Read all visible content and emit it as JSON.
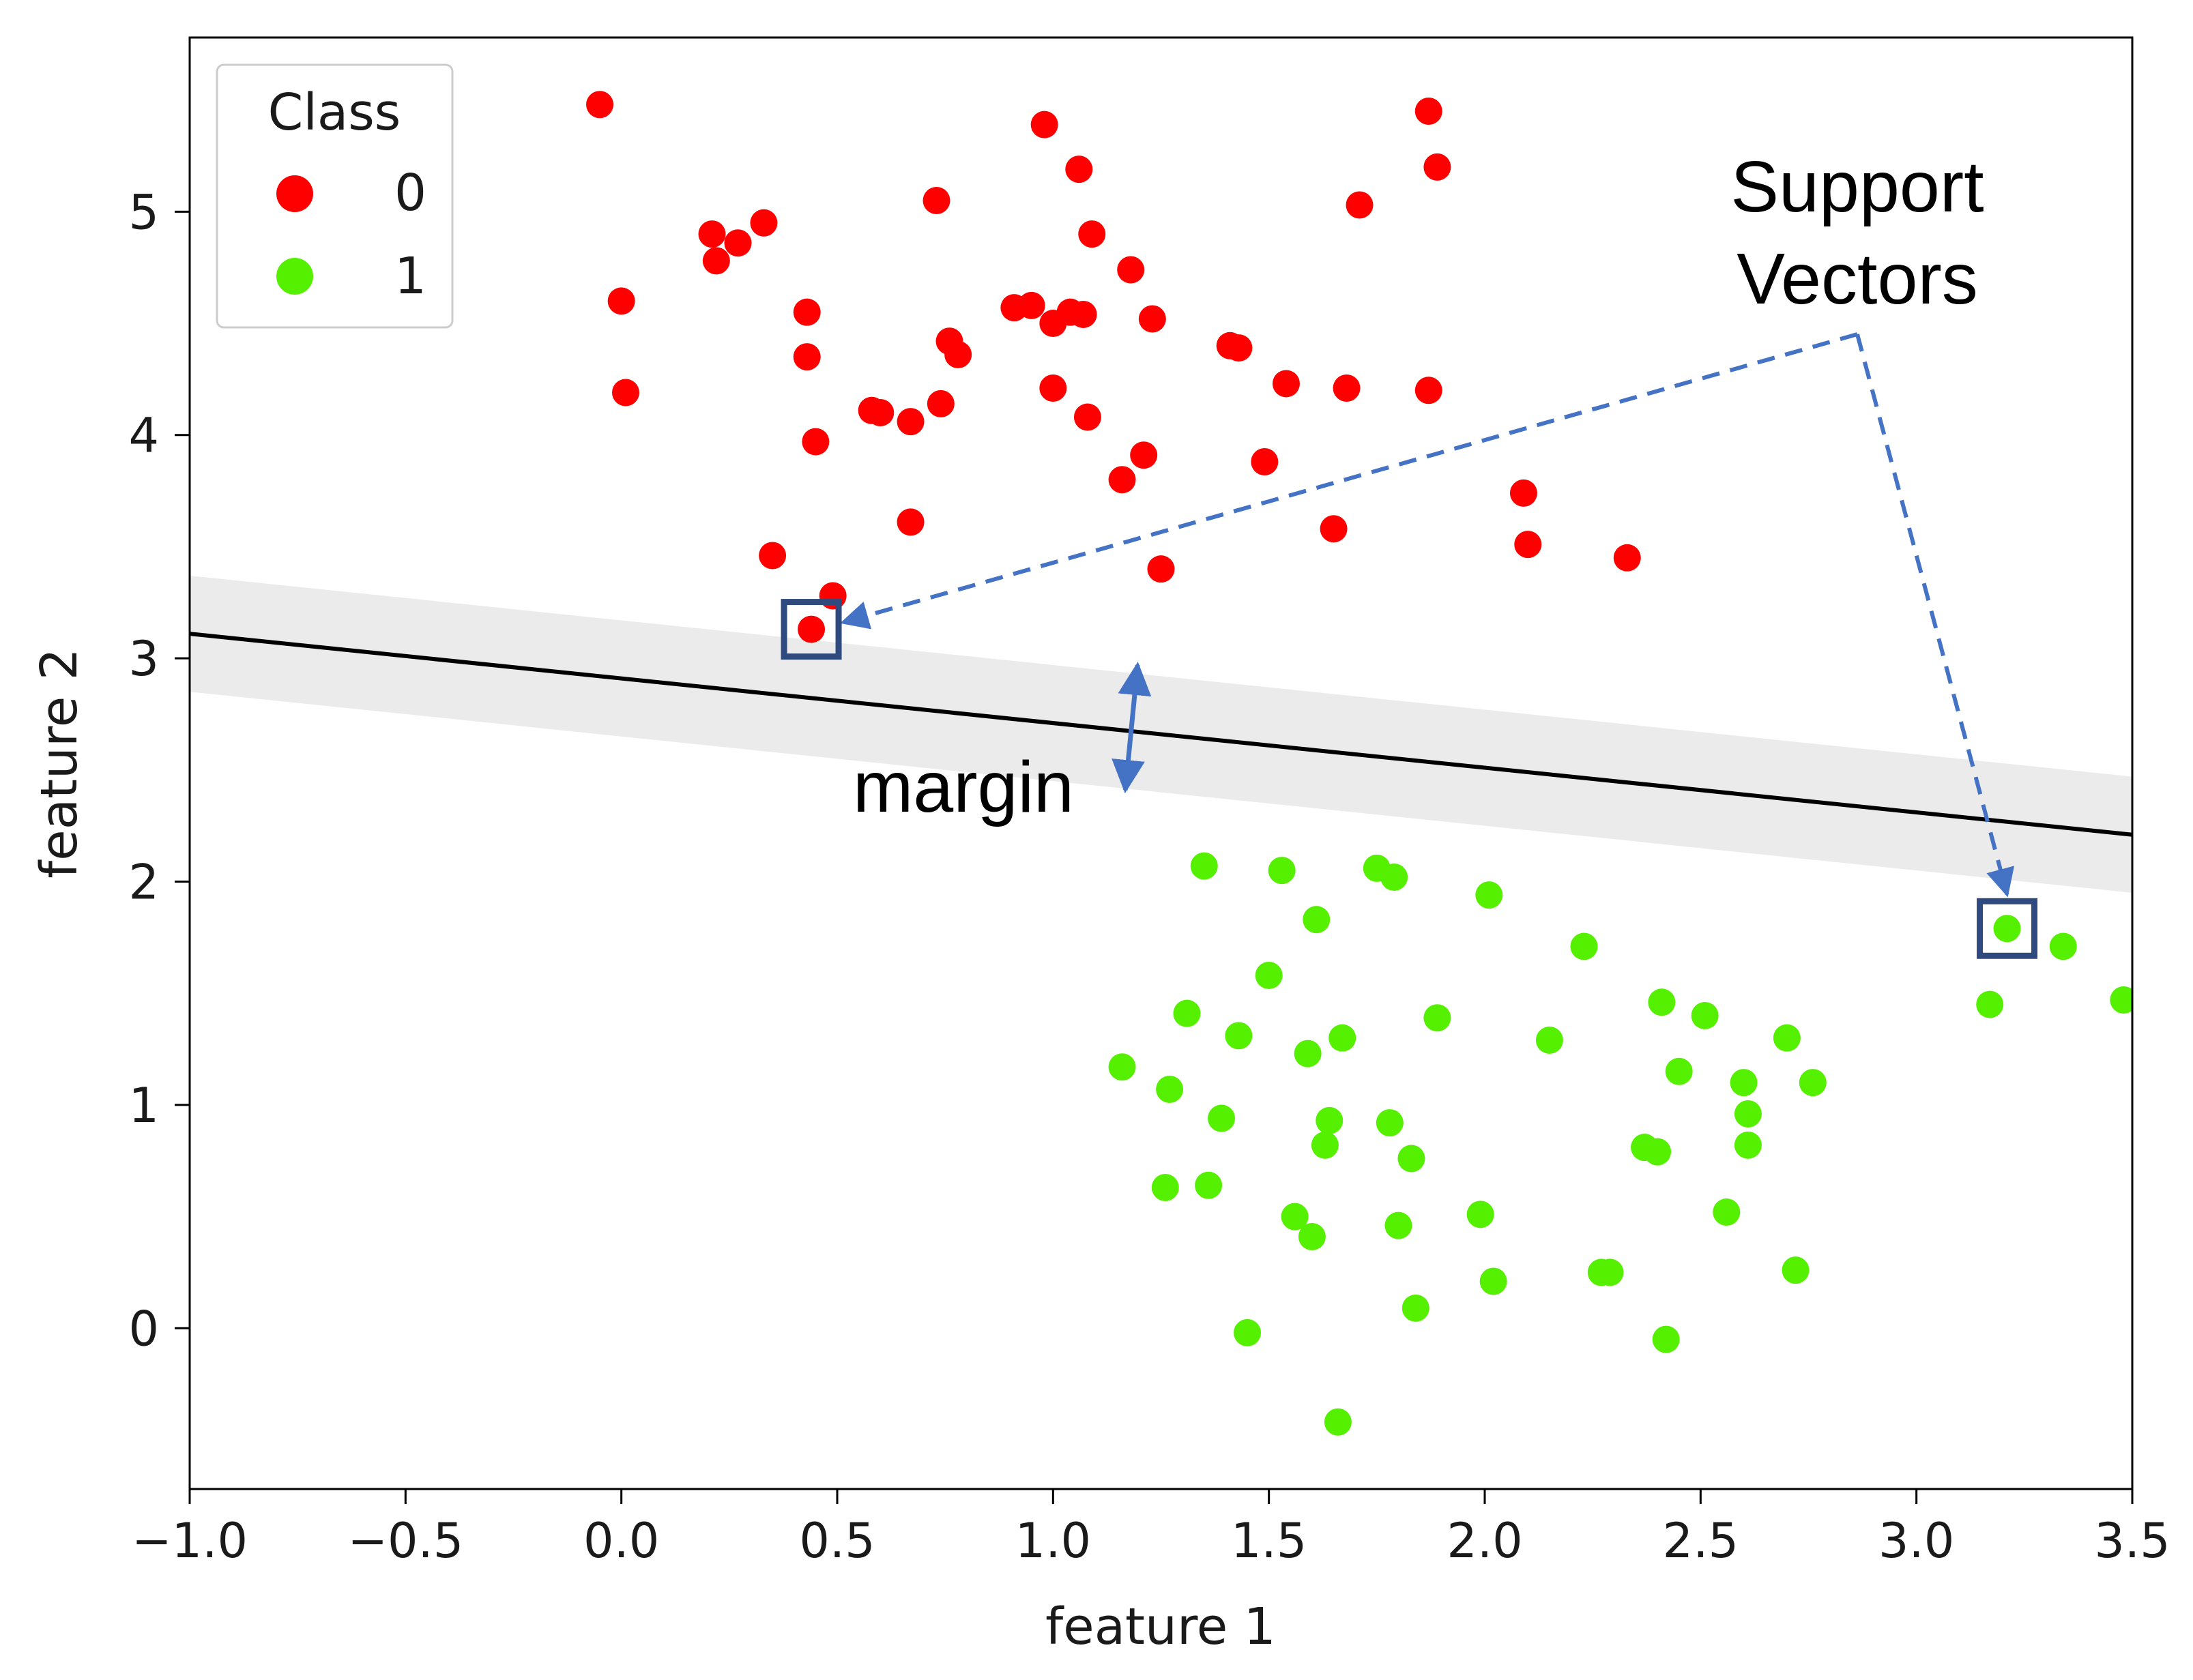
{
  "chart_data": {
    "type": "scatter",
    "xlabel": "feature 1",
    "ylabel": "feature 2",
    "xlim": [
      -1.0,
      3.5
    ],
    "ylim": [
      -0.72,
      5.78
    ],
    "grid": false,
    "xticks": [
      "-1.0",
      "-0.5",
      "0.0",
      "0.5",
      "1.0",
      "1.5",
      "2.0",
      "2.5",
      "3.0",
      "3.5"
    ],
    "xtick_values": [
      -1.0,
      -0.5,
      0.0,
      0.5,
      1.0,
      1.5,
      2.0,
      2.5,
      3.0,
      3.5
    ],
    "yticks": [
      "0",
      "1",
      "2",
      "3",
      "4",
      "5"
    ],
    "ytick_values": [
      0,
      1,
      2,
      3,
      4,
      5
    ],
    "legend": {
      "title": "Class",
      "placement": "top-left",
      "entries": [
        {
          "label": "0",
          "color": "#ff0000"
        },
        {
          "label": "1",
          "color": "#55f000"
        }
      ]
    },
    "series": [
      {
        "name": "0",
        "color": "#ff0000",
        "points": [
          [
            -0.05,
            5.48
          ],
          [
            0.0,
            4.6
          ],
          [
            0.01,
            4.19
          ],
          [
            0.21,
            4.9
          ],
          [
            0.22,
            4.78
          ],
          [
            0.27,
            4.86
          ],
          [
            0.33,
            4.95
          ],
          [
            0.43,
            4.55
          ],
          [
            0.43,
            4.35
          ],
          [
            0.45,
            3.97
          ],
          [
            0.35,
            3.46
          ],
          [
            0.49,
            3.28
          ],
          [
            0.44,
            3.13
          ],
          [
            0.58,
            4.11
          ],
          [
            0.6,
            4.1
          ],
          [
            0.67,
            4.06
          ],
          [
            0.67,
            3.61
          ],
          [
            0.73,
            5.05
          ],
          [
            0.76,
            4.42
          ],
          [
            0.78,
            4.36
          ],
          [
            0.74,
            4.14
          ],
          [
            0.91,
            4.57
          ],
          [
            0.95,
            4.58
          ],
          [
            1.0,
            4.5
          ],
          [
            1.04,
            4.55
          ],
          [
            1.07,
            4.54
          ],
          [
            0.98,
            5.39
          ],
          [
            1.06,
            5.19
          ],
          [
            1.09,
            4.9
          ],
          [
            1.0,
            4.21
          ],
          [
            1.08,
            4.08
          ],
          [
            1.18,
            4.74
          ],
          [
            1.23,
            4.52
          ],
          [
            1.21,
            3.91
          ],
          [
            1.16,
            3.8
          ],
          [
            1.25,
            3.4
          ],
          [
            1.41,
            4.4
          ],
          [
            1.43,
            4.39
          ],
          [
            1.49,
            3.88
          ],
          [
            1.54,
            4.23
          ],
          [
            1.65,
            3.58
          ],
          [
            1.68,
            4.21
          ],
          [
            1.71,
            5.03
          ],
          [
            1.87,
            5.45
          ],
          [
            1.89,
            5.2
          ],
          [
            1.87,
            4.2
          ],
          [
            2.09,
            3.74
          ],
          [
            2.1,
            3.51
          ],
          [
            2.33,
            3.45
          ]
        ]
      },
      {
        "name": "1",
        "color": "#55f000",
        "points": [
          [
            1.35,
            2.07
          ],
          [
            1.53,
            2.05
          ],
          [
            1.75,
            2.06
          ],
          [
            1.79,
            2.02
          ],
          [
            1.61,
            1.83
          ],
          [
            2.01,
            1.94
          ],
          [
            2.23,
            1.71
          ],
          [
            1.5,
            1.58
          ],
          [
            1.31,
            1.41
          ],
          [
            1.43,
            1.31
          ],
          [
            1.59,
            1.23
          ],
          [
            1.67,
            1.3
          ],
          [
            1.89,
            1.39
          ],
          [
            2.15,
            1.29
          ],
          [
            2.41,
            1.46
          ],
          [
            2.51,
            1.4
          ],
          [
            2.7,
            1.3
          ],
          [
            1.16,
            1.17
          ],
          [
            1.27,
            1.07
          ],
          [
            1.39,
            0.94
          ],
          [
            1.64,
            0.93
          ],
          [
            1.63,
            0.82
          ],
          [
            1.78,
            0.92
          ],
          [
            1.83,
            0.76
          ],
          [
            2.45,
            1.15
          ],
          [
            2.6,
            1.1
          ],
          [
            2.61,
            0.96
          ],
          [
            2.76,
            1.1
          ],
          [
            2.61,
            0.82
          ],
          [
            2.37,
            0.81
          ],
          [
            2.4,
            0.79
          ],
          [
            1.26,
            0.63
          ],
          [
            1.36,
            0.64
          ],
          [
            1.56,
            0.5
          ],
          [
            1.6,
            0.41
          ],
          [
            1.8,
            0.46
          ],
          [
            1.99,
            0.51
          ],
          [
            2.56,
            0.52
          ],
          [
            2.02,
            0.21
          ],
          [
            2.27,
            0.25
          ],
          [
            2.29,
            0.25
          ],
          [
            2.72,
            0.26
          ],
          [
            1.84,
            0.09
          ],
          [
            1.45,
            -0.02
          ],
          [
            2.42,
            -0.05
          ],
          [
            1.66,
            -0.42
          ],
          [
            3.21,
            1.79
          ],
          [
            3.34,
            1.71
          ],
          [
            3.17,
            1.45
          ],
          [
            3.48,
            1.47
          ]
        ]
      }
    ],
    "decision_boundary": {
      "x": [
        -1.0,
        3.5
      ],
      "y": [
        3.11,
        2.21
      ],
      "margin_upper": [
        3.37,
        2.47
      ],
      "margin_lower": [
        2.85,
        1.95
      ]
    },
    "support_vectors": [
      [
        0.44,
        3.13
      ],
      [
        3.21,
        1.79
      ]
    ],
    "annotations": {
      "support_vectors_line1": "Support",
      "support_vectors_line2": "Vectors",
      "margin": "margin"
    },
    "colors": {
      "annotation": "#4472c4",
      "support_vector_box": "#2f4a7f",
      "margin_band": "#ebebeb",
      "boundary": "#000000"
    }
  }
}
